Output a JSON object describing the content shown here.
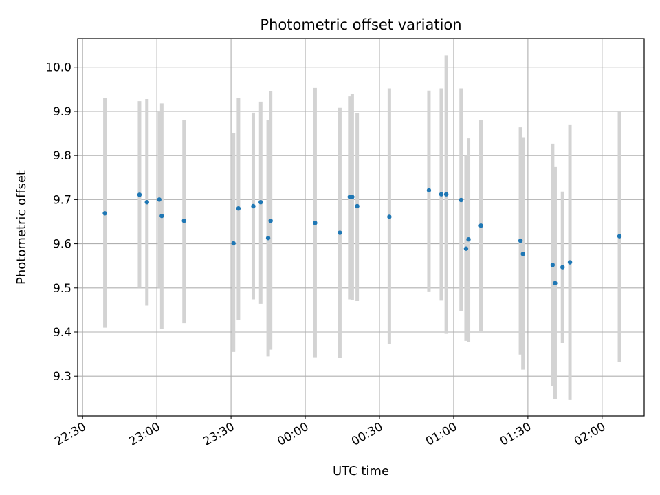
{
  "chart_data": {
    "type": "scatter",
    "title": "Photometric offset variation",
    "xlabel": "UTC time",
    "ylabel": "Photometric offset",
    "x_axis_kind": "time",
    "xlim": [
      "22:28",
      "02:17"
    ],
    "ylim": [
      9.21,
      10.065
    ],
    "grid": true,
    "legend": "none",
    "colors": {
      "points": "#1f77b4",
      "errorbars": "#d3d3d3",
      "grid": "#b0b0b0"
    },
    "x_ticks": [
      "22:30",
      "23:00",
      "23:30",
      "00:00",
      "00:30",
      "01:00",
      "01:30",
      "02:00"
    ],
    "y_ticks": [
      9.3,
      9.4,
      9.5,
      9.6,
      9.7,
      9.8,
      9.9,
      10.0
    ],
    "points": [
      {
        "x": "22:39",
        "y": 9.669,
        "ylo": 9.41,
        "yhi": 9.93
      },
      {
        "x": "22:53",
        "y": 9.711,
        "ylo": 9.5,
        "yhi": 9.923
      },
      {
        "x": "22:56",
        "y": 9.694,
        "ylo": 9.46,
        "yhi": 9.928
      },
      {
        "x": "23:01",
        "y": 9.7,
        "ylo": 9.5,
        "yhi": 9.9
      },
      {
        "x": "23:02",
        "y": 9.663,
        "ylo": 9.407,
        "yhi": 9.918
      },
      {
        "x": "23:11",
        "y": 9.652,
        "ylo": 9.42,
        "yhi": 9.881
      },
      {
        "x": "23:31",
        "y": 9.601,
        "ylo": 9.355,
        "yhi": 9.85
      },
      {
        "x": "23:33",
        "y": 9.68,
        "ylo": 9.428,
        "yhi": 9.93
      },
      {
        "x": "23:39",
        "y": 9.685,
        "ylo": 9.474,
        "yhi": 9.897
      },
      {
        "x": "23:42",
        "y": 9.694,
        "ylo": 9.464,
        "yhi": 9.922
      },
      {
        "x": "23:45",
        "y": 9.613,
        "ylo": 9.345,
        "yhi": 9.88
      },
      {
        "x": "23:46",
        "y": 9.652,
        "ylo": 9.36,
        "yhi": 9.945
      },
      {
        "x": "00:04",
        "y": 9.647,
        "ylo": 9.343,
        "yhi": 9.953
      },
      {
        "x": "00:14",
        "y": 9.625,
        "ylo": 9.341,
        "yhi": 9.908
      },
      {
        "x": "00:18",
        "y": 9.706,
        "ylo": 9.474,
        "yhi": 9.934
      },
      {
        "x": "00:19",
        "y": 9.706,
        "ylo": 9.472,
        "yhi": 9.94
      },
      {
        "x": "00:21",
        "y": 9.685,
        "ylo": 9.47,
        "yhi": 9.896
      },
      {
        "x": "00:34",
        "y": 9.661,
        "ylo": 9.372,
        "yhi": 9.952
      },
      {
        "x": "00:50",
        "y": 9.721,
        "ylo": 9.492,
        "yhi": 9.947
      },
      {
        "x": "00:55",
        "y": 9.712,
        "ylo": 9.471,
        "yhi": 9.952
      },
      {
        "x": "00:57",
        "y": 9.712,
        "ylo": 9.396,
        "yhi": 10.027
      },
      {
        "x": "01:03",
        "y": 9.699,
        "ylo": 9.447,
        "yhi": 9.952
      },
      {
        "x": "01:05",
        "y": 9.589,
        "ylo": 9.38,
        "yhi": 9.8
      },
      {
        "x": "01:06",
        "y": 9.61,
        "ylo": 9.378,
        "yhi": 9.839
      },
      {
        "x": "01:11",
        "y": 9.641,
        "ylo": 9.402,
        "yhi": 9.88
      },
      {
        "x": "01:27",
        "y": 9.607,
        "ylo": 9.349,
        "yhi": 9.864
      },
      {
        "x": "01:28",
        "y": 9.577,
        "ylo": 9.315,
        "yhi": 9.84
      },
      {
        "x": "01:40",
        "y": 9.552,
        "ylo": 9.277,
        "yhi": 9.827
      },
      {
        "x": "01:41",
        "y": 9.511,
        "ylo": 9.248,
        "yhi": 9.774
      },
      {
        "x": "01:44",
        "y": 9.547,
        "ylo": 9.375,
        "yhi": 9.718
      },
      {
        "x": "01:47",
        "y": 9.558,
        "ylo": 9.246,
        "yhi": 9.869
      },
      {
        "x": "02:07",
        "y": 9.617,
        "ylo": 9.332,
        "yhi": 9.9
      }
    ]
  }
}
